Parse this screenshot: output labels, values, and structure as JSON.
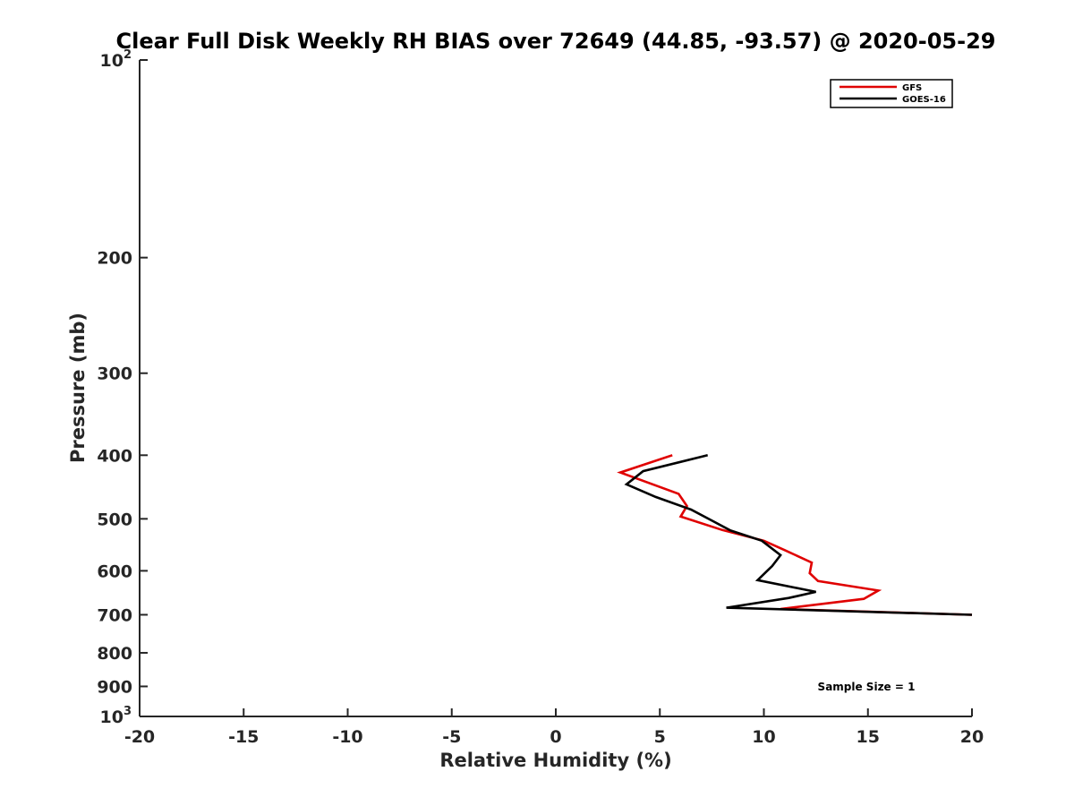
{
  "chart_data": {
    "type": "line",
    "title": "Clear Full Disk Weekly RH BIAS over 72649 (44.85, -93.57) @ 2020-05-29",
    "xlabel": "Relative Humidity (%)",
    "ylabel": "Pressure (mb)",
    "xlim": [
      -20,
      20
    ],
    "ylim": [
      100,
      1000
    ],
    "yscale": "log",
    "yreversed": true,
    "grid": false,
    "legend_position": "top-right",
    "x_ticks": [
      {
        "value": -20,
        "label": "-20"
      },
      {
        "value": -15,
        "label": "-15"
      },
      {
        "value": -10,
        "label": "-10"
      },
      {
        "value": -5,
        "label": "-5"
      },
      {
        "value": 0,
        "label": "0"
      },
      {
        "value": 5,
        "label": "5"
      },
      {
        "value": 10,
        "label": "10"
      },
      {
        "value": 15,
        "label": "15"
      },
      {
        "value": 20,
        "label": "20"
      }
    ],
    "y_ticks": [
      {
        "value": 100,
        "label": "10",
        "sup": "2"
      },
      {
        "value": 200,
        "label": "200"
      },
      {
        "value": 300,
        "label": "300"
      },
      {
        "value": 400,
        "label": "400"
      },
      {
        "value": 500,
        "label": "500"
      },
      {
        "value": 600,
        "label": "600"
      },
      {
        "value": 700,
        "label": "700"
      },
      {
        "value": 800,
        "label": "800"
      },
      {
        "value": 900,
        "label": "900"
      },
      {
        "value": 1000,
        "label": "10",
        "sup": "3"
      }
    ],
    "series": [
      {
        "name": "GFS",
        "color": "#e00000",
        "points": [
          {
            "x": 5.6,
            "y": 400
          },
          {
            "x": 3.1,
            "y": 425
          },
          {
            "x": 5.9,
            "y": 458
          },
          {
            "x": 6.3,
            "y": 478
          },
          {
            "x": 6.0,
            "y": 496
          },
          {
            "x": 8.0,
            "y": 520
          },
          {
            "x": 10.0,
            "y": 540
          },
          {
            "x": 11.0,
            "y": 558
          },
          {
            "x": 12.3,
            "y": 583
          },
          {
            "x": 12.2,
            "y": 605
          },
          {
            "x": 12.6,
            "y": 622
          },
          {
            "x": 15.5,
            "y": 643
          },
          {
            "x": 14.8,
            "y": 662
          },
          {
            "x": 10.8,
            "y": 686
          },
          {
            "x": 20.0,
            "y": 700
          }
        ]
      },
      {
        "name": "GOES-16",
        "color": "#000000",
        "points": [
          {
            "x": 7.3,
            "y": 400
          },
          {
            "x": 4.2,
            "y": 423
          },
          {
            "x": 3.4,
            "y": 443
          },
          {
            "x": 4.8,
            "y": 463
          },
          {
            "x": 6.5,
            "y": 484
          },
          {
            "x": 7.6,
            "y": 505
          },
          {
            "x": 8.4,
            "y": 521
          },
          {
            "x": 9.9,
            "y": 540
          },
          {
            "x": 10.8,
            "y": 568
          },
          {
            "x": 10.4,
            "y": 590
          },
          {
            "x": 9.7,
            "y": 620
          },
          {
            "x": 12.5,
            "y": 646
          },
          {
            "x": 11.2,
            "y": 660
          },
          {
            "x": 8.2,
            "y": 683
          },
          {
            "x": 20.0,
            "y": 700
          }
        ]
      }
    ],
    "annotations": [
      {
        "text": "Sample Size = 1"
      }
    ]
  }
}
